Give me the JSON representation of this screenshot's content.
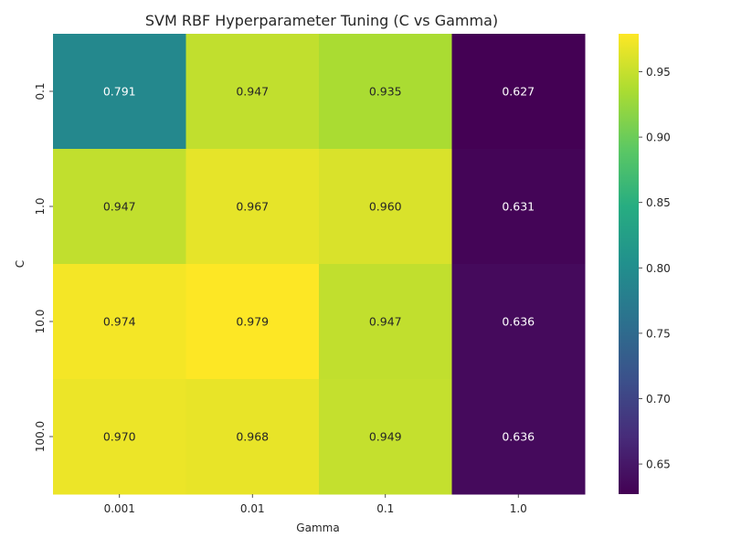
{
  "chart_data": {
    "type": "heatmap",
    "title": "SVM RBF Hyperparameter Tuning (C vs Gamma)",
    "xlabel": "Gamma",
    "ylabel": "C",
    "x_categories": [
      "0.001",
      "0.01",
      "0.1",
      "1.0"
    ],
    "y_categories": [
      "0.1",
      "1.0",
      "10.0",
      "100.0"
    ],
    "values": [
      [
        0.791,
        0.947,
        0.935,
        0.627
      ],
      [
        0.947,
        0.967,
        0.96,
        0.631
      ],
      [
        0.974,
        0.979,
        0.947,
        0.636
      ],
      [
        0.97,
        0.968,
        0.949,
        0.636
      ]
    ],
    "cell_labels": [
      [
        "0.791",
        "0.947",
        "0.935",
        "0.627"
      ],
      [
        "0.947",
        "0.967",
        "0.960",
        "0.631"
      ],
      [
        "0.974",
        "0.979",
        "0.947",
        "0.636"
      ],
      [
        "0.970",
        "0.968",
        "0.949",
        "0.636"
      ]
    ],
    "colormap": "viridis",
    "vmin": 0.627,
    "vmax": 0.979,
    "colorbar_ticks": [
      "0.65",
      "0.70",
      "0.75",
      "0.80",
      "0.85",
      "0.90",
      "0.95"
    ],
    "colorbar_tick_values": [
      0.65,
      0.7,
      0.75,
      0.8,
      0.85,
      0.9,
      0.95
    ]
  }
}
